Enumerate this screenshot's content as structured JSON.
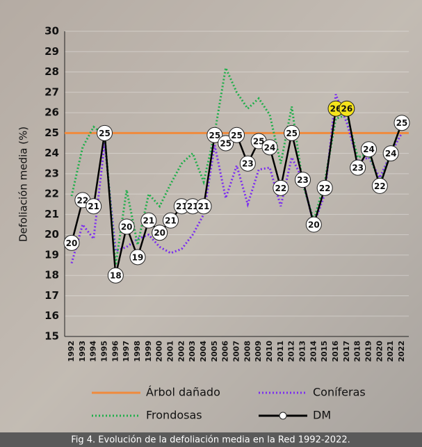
{
  "chart_data": {
    "type": "line",
    "caption": "Fig 4. Evolución de la defoliación media en la Red 1992-2022.",
    "y_label": "Defoliación media (%)",
    "categories": [
      "1992",
      "1993",
      "1994",
      "1995",
      "1996",
      "1997",
      "1998",
      "1999",
      "2000",
      "2001",
      "2002",
      "2003",
      "2004",
      "2005",
      "2006",
      "2007",
      "2008",
      "2009",
      "2010",
      "2011",
      "2012",
      "2013",
      "2014",
      "2015",
      "2016",
      "2017",
      "2018",
      "2019",
      "2020",
      "2021",
      "2022"
    ],
    "reference": {
      "name": "Árbol dañado",
      "value": 25,
      "color": "#f08a3c"
    },
    "series": [
      {
        "name": "Coníferas",
        "color": "#7a2cf0",
        "style": "dotted",
        "values": [
          18.6,
          20.5,
          19.8,
          24.5,
          19.2,
          19.4,
          19.8,
          20.0,
          19.4,
          19.1,
          19.3,
          20.0,
          21.0,
          24.4,
          21.8,
          23.4,
          21.5,
          23.2,
          23.3,
          21.4,
          23.8,
          22.7,
          20.5,
          22.0,
          26.9,
          25.5,
          23.6,
          23.8,
          22.8,
          24.0,
          25.0
        ]
      },
      {
        "name": "Frondosas",
        "color": "#1fae4a",
        "style": "dotted",
        "values": [
          21.9,
          24.3,
          25.3,
          24.9,
          18.5,
          22.2,
          19.5,
          22.0,
          21.4,
          22.5,
          23.5,
          24.0,
          22.6,
          25.0,
          28.2,
          27.0,
          26.2,
          26.7,
          25.9,
          23.5,
          26.3,
          22.5,
          20.7,
          22.6,
          25.7,
          25.9,
          23.8,
          24.0,
          22.5,
          24.0,
          25.5
        ]
      },
      {
        "name": "DM",
        "color": "#000000",
        "style": "solid",
        "markers": true,
        "highlight_color": "#f5e31c",
        "values": [
          19.6,
          21.7,
          21.4,
          25.0,
          18.0,
          20.4,
          18.9,
          20.7,
          20.1,
          20.7,
          21.4,
          21.4,
          21.4,
          24.9,
          24.5,
          24.9,
          23.5,
          24.6,
          24.3,
          22.3,
          25.0,
          22.7,
          20.5,
          22.3,
          26.2,
          26.2,
          23.3,
          24.2,
          22.4,
          24.0,
          25.5
        ],
        "value_labels": [
          "20",
          "22",
          "21",
          "25",
          "18",
          "20",
          "19",
          "21",
          "20",
          "21",
          "21",
          "21",
          "21",
          "25",
          "25",
          "25",
          "23",
          "25",
          "24",
          "22",
          "25",
          "23",
          "20",
          "22",
          "26",
          "26",
          "23",
          "24",
          "22",
          "24",
          "25"
        ]
      }
    ],
    "ylim": [
      15,
      30
    ],
    "yticks": [
      15,
      16,
      17,
      18,
      19,
      20,
      21,
      22,
      23,
      24,
      25,
      26,
      27,
      28,
      29,
      30
    ],
    "grid": true
  }
}
